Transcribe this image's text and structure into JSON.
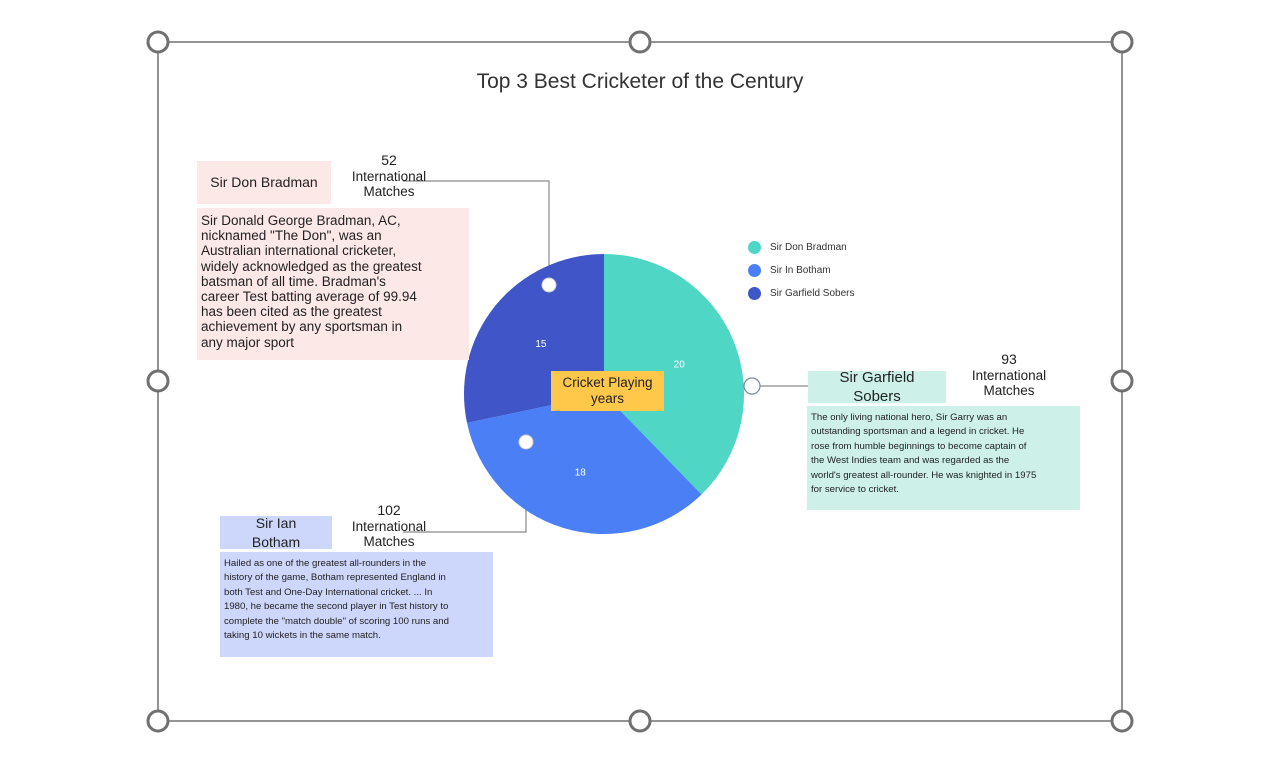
{
  "colors": {
    "bradman": "#4fd6c5",
    "botham": "#4a7ff5",
    "sobers": "#3f55c8",
    "bradman_box": "#fde8e8",
    "botham_box": "#cdd7fb",
    "sobers_box": "#cdf0e9",
    "center_label": "#ffc84a"
  },
  "chart_data": {
    "type": "pie",
    "title": "Top 3 Best Cricketer of the Century",
    "center_label": "Cricket Playing years",
    "categories": [
      "Sir Don Bradman",
      "Sir In Botham",
      "Sir Garfield Sobers"
    ],
    "values": [
      20,
      18,
      15
    ],
    "legend_position": "right",
    "annotations": [
      {
        "name": "Sir Don Bradman",
        "matches_count": "52",
        "matches_label": "International Matches",
        "description": "Sir Donald George Bradman, AC,\nnicknamed \"The Don\", was an\nAustralian international cricketer,\nwidely acknowledged as the greatest\nbatsman of all time. Bradman's\ncareer Test batting average of 99.94\nhas been cited as the greatest\nachievement by any sportsman in\nany major sport"
      },
      {
        "name": "Sir Ian Botham",
        "matches_count": "102",
        "matches_label": "International Matches",
        "description": "Hailed as one of the greatest all-rounders in the\nhistory of the game, Botham represented England in\nboth Test and One-Day International cricket. ... In\n1980, he became the second player in Test history to\ncomplete the \"match double\" of scoring 100 runs and\ntaking 10 wickets in the same match."
      },
      {
        "name": "Sir Garfield Sobers",
        "matches_count": "93",
        "matches_label": "International Matches",
        "description": "The only living national hero, Sir Garry was an\noutstanding sportsman and a legend in cricket. He\nrose from humble beginnings to become captain of\nthe West Indies team and was regarded as the\nworld's greatest all-rounder. He was knighted in 1975\nfor service to cricket."
      }
    ]
  }
}
